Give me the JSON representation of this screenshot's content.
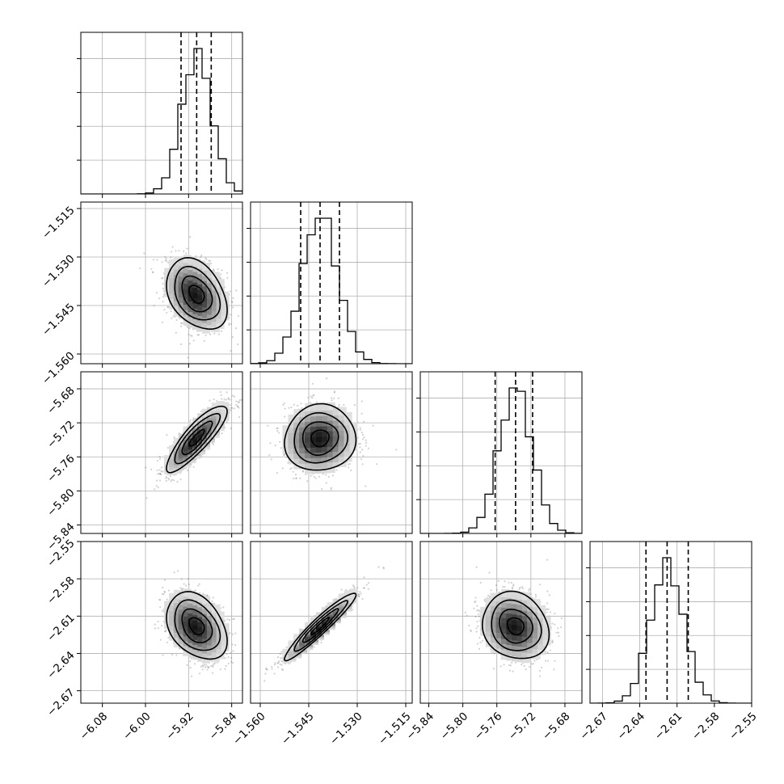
{
  "chart_data": {
    "type": "corner",
    "parameters": [
      {
        "range": [
          -6.12,
          -5.82
        ],
        "ticks": [
          "-6.08",
          "-6.00",
          "-5.92",
          "-5.84"
        ],
        "tick_values": [
          -6.08,
          -6.0,
          -5.92,
          -5.84
        ],
        "mean": -5.905,
        "sd": 0.028,
        "quantiles": [
          -5.934,
          -5.905,
          -5.878
        ]
      },
      {
        "range": [
          -1.563,
          -1.513
        ],
        "ticks": [
          "-1.560",
          "-1.545",
          "-1.530",
          "-1.515"
        ],
        "tick_values": [
          -1.56,
          -1.545,
          -1.53,
          -1.515
        ],
        "mean": -1.5415,
        "sd": 0.0055,
        "quantiles": [
          -1.5475,
          -1.5415,
          -1.5355
        ]
      },
      {
        "range": [
          -5.85,
          -5.66
        ],
        "ticks": [
          "-5.84",
          "-5.80",
          "-5.76",
          "-5.72",
          "-5.68"
        ],
        "tick_values": [
          -5.84,
          -5.8,
          -5.76,
          -5.72,
          -5.68
        ],
        "mean": -5.738,
        "sd": 0.0195,
        "quantiles": [
          -5.762,
          -5.738,
          -5.718
        ]
      },
      {
        "range": [
          -2.68,
          -2.55
        ],
        "ticks": [
          "-2.67",
          "-2.64",
          "-2.61",
          "-2.58",
          "-2.55"
        ],
        "tick_values": [
          -2.67,
          -2.64,
          -2.61,
          -2.58,
          -2.55
        ],
        "mean": -2.618,
        "sd": 0.0135,
        "quantiles": [
          -2.635,
          -2.618,
          -2.601
        ]
      }
    ],
    "correlations": {
      "1-0": -0.35,
      "2-0": 0.85,
      "2-1": 0.05,
      "3-0": -0.35,
      "3-1": 0.95,
      "3-2": -0.15
    },
    "hist_bins": 20,
    "contour_levels": [
      "0.5-sigma",
      "1-sigma",
      "1.5-sigma",
      "2-sigma"
    ],
    "grid": true,
    "xlabel": "",
    "ylabel": "",
    "title": ""
  }
}
